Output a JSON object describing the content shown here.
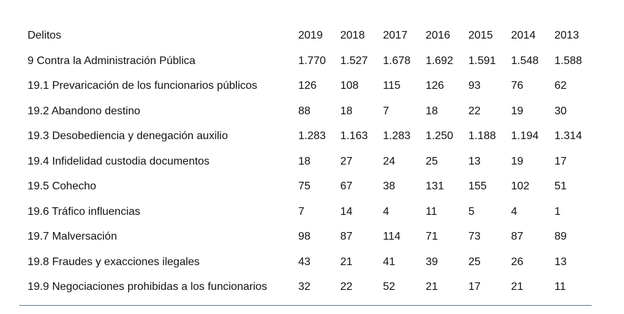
{
  "table": {
    "header": {
      "label": "Delitos",
      "years": [
        "2019",
        "2018",
        "2017",
        "2016",
        "2015",
        "2014",
        "2013"
      ]
    },
    "rows": [
      {
        "label": "9 Contra la Administración Pública",
        "values": [
          "1.770",
          "1.527",
          "1.678",
          "1.692",
          "1.591",
          "1.548",
          "1.588"
        ]
      },
      {
        "label": "19.1 Prevaricación de los funcionarios públicos",
        "values": [
          "126",
          "108",
          "115",
          "126",
          "93",
          "76",
          "62"
        ]
      },
      {
        "label": "19.2 Abandono destino",
        "values": [
          "88",
          "18",
          "7",
          "18",
          "22",
          "19",
          "30"
        ]
      },
      {
        "label": "19.3 Desobediencia y denegación auxilio",
        "values": [
          "1.283",
          "1.163",
          "1.283",
          "1.250",
          "1.188",
          "1.194",
          "1.314"
        ]
      },
      {
        "label": "19.4 Infidelidad custodia documentos",
        "values": [
          "18",
          "27",
          "24",
          "25",
          "13",
          "19",
          "17"
        ]
      },
      {
        "label": "19.5 Cohecho",
        "values": [
          "75",
          "67",
          "38",
          "131",
          "155",
          "102",
          "51"
        ]
      },
      {
        "label": "19.6 Tráfico influencias",
        "values": [
          "7",
          "14",
          "4",
          "11",
          "5",
          "4",
          "1"
        ]
      },
      {
        "label": "19.7 Malversación",
        "values": [
          "98",
          "87",
          "114",
          "71",
          "73",
          "87",
          "89"
        ]
      },
      {
        "label": "19.8 Fraudes y exacciones ilegales",
        "values": [
          "43",
          "21",
          "41",
          "39",
          "25",
          "26",
          "13"
        ]
      },
      {
        "label": "19.9 Negociaciones prohibidas a los funcionarios",
        "values": [
          "32",
          "22",
          "52",
          "21",
          "17",
          "21",
          "11"
        ]
      }
    ]
  }
}
